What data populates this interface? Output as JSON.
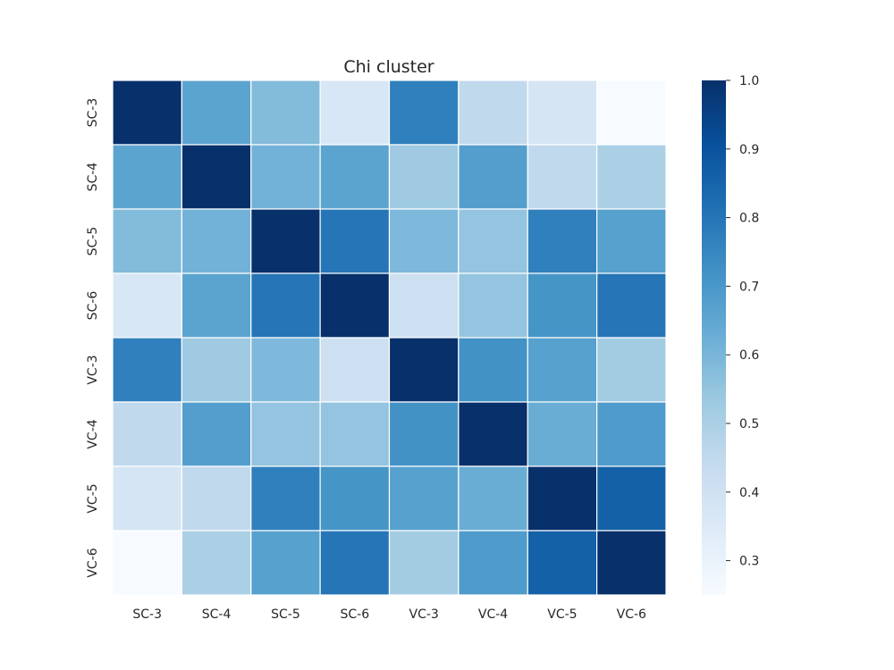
{
  "chart_data": {
    "type": "heatmap",
    "title": "Chi cluster",
    "xlabel": "",
    "ylabel": "",
    "rows": [
      "SC-3",
      "SC-4",
      "SC-5",
      "SC-6",
      "VC-3",
      "VC-4",
      "VC-5",
      "VC-6"
    ],
    "columns": [
      "SC-3",
      "SC-4",
      "SC-5",
      "SC-6",
      "VC-3",
      "VC-4",
      "VC-5",
      "VC-6"
    ],
    "values": [
      [
        1.0,
        0.66,
        0.58,
        0.37,
        0.77,
        0.45,
        0.38,
        0.25
      ],
      [
        0.66,
        1.0,
        0.61,
        0.66,
        0.53,
        0.68,
        0.45,
        0.5
      ],
      [
        0.58,
        0.61,
        1.0,
        0.8,
        0.59,
        0.55,
        0.77,
        0.67
      ],
      [
        0.37,
        0.66,
        0.8,
        1.0,
        0.41,
        0.55,
        0.71,
        0.8
      ],
      [
        0.77,
        0.53,
        0.59,
        0.41,
        1.0,
        0.72,
        0.67,
        0.52
      ],
      [
        0.45,
        0.68,
        0.55,
        0.55,
        0.72,
        1.0,
        0.63,
        0.69
      ],
      [
        0.38,
        0.45,
        0.77,
        0.71,
        0.67,
        0.63,
        1.0,
        0.86
      ],
      [
        0.25,
        0.5,
        0.67,
        0.8,
        0.52,
        0.69,
        0.86,
        1.0
      ]
    ],
    "colormap": "Blues",
    "vmin": 0.25,
    "vmax": 1.0,
    "colorbar_ticks": [
      "0.3",
      "0.4",
      "0.5",
      "0.6",
      "0.7",
      "0.8",
      "0.9",
      "1.0"
    ],
    "cell_border_color": "#ffffff",
    "grid": false,
    "legend": "colorbar-right"
  }
}
